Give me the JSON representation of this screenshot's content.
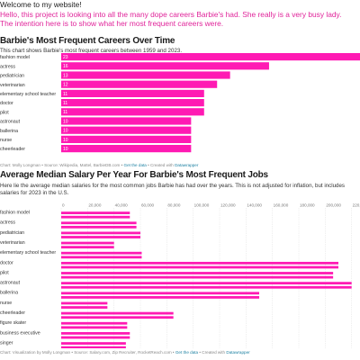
{
  "page": {
    "welcome": "Welcome to my website!",
    "intro": "Hello, this project is looking into all the many dope careers Barbie's had. She really is a very busy lady. The intention here is to show what her most frequent careers were."
  },
  "colors": {
    "accent": "#e0249a",
    "bar": "#ff1ab3",
    "link": "#1d81a2"
  },
  "chart1": {
    "title": "Barbie's Most Frequent Careers Over Time",
    "subtitle": "This chart shows Barbie's most frequent careers between 1959 and 2023.",
    "footer": {
      "chart_by": "Chart: Molly Longman",
      "source": "Source: Wikipedia, Mattel, BarbieDB.com",
      "get_data": "Get the data",
      "created": "Created with",
      "tool": "Datawrapper"
    }
  },
  "chart2": {
    "title": "Average Median Salary Per Year For Barbie's Most Frequent Jobs",
    "subtitle": "Here lie the average median salaries for the most common jobs Barbie has had over the years. This is not adjusted for inflation, but includes salaries for 2023 in the U.S.",
    "footer": {
      "chart_by": "Chart: Visualization by Molly Longman",
      "source": "Source: Salary.com, Zip Recruiter, RocketReach.com",
      "get_data": "Get the data",
      "created": "Created with",
      "tool": "Datawrapper"
    }
  },
  "chart_data": [
    {
      "type": "bar",
      "orientation": "horizontal",
      "title": "Barbie's Most Frequent Careers Over Time",
      "categories": [
        "fashion model",
        "actress",
        "pediatrician",
        "veterinarian",
        "elementary school teacher",
        "doctor",
        "pilot",
        "astronaut",
        "ballerina",
        "nurse",
        "cheerleader"
      ],
      "values": [
        23,
        16,
        13,
        12,
        11,
        11,
        11,
        10,
        10,
        10,
        10
      ],
      "xlim": [
        0,
        23
      ],
      "value_labels": "inside-bar",
      "grid": false
    },
    {
      "type": "bar",
      "orientation": "horizontal",
      "title": "Average Median Salary Per Year For Barbie's Most Frequent Jobs",
      "categories": [
        "fashion model",
        "actress",
        "pediatrician",
        "veterinarian",
        "elementary school teacher",
        "doctor",
        "pilot",
        "astronaut",
        "ballerina",
        "nurse",
        "cheerleader",
        "figure skater",
        "business executive",
        "singer"
      ],
      "values": [
        52000,
        57000,
        60000,
        40000,
        61000,
        210000,
        206000,
        220000,
        150000,
        35000,
        85000,
        50000,
        52000,
        49000
      ],
      "x_ticks": [
        "0",
        "20,000",
        "40,000",
        "60,000",
        "80,000",
        "100,000",
        "120,000",
        "140,000",
        "160,000",
        "180,000",
        "200,000",
        "220,000"
      ],
      "tick_values": [
        0,
        20000,
        40000,
        60000,
        80000,
        100000,
        120000,
        140000,
        160000,
        180000,
        200000,
        220000
      ],
      "xlim": [
        0,
        225000
      ],
      "grid": true
    }
  ]
}
